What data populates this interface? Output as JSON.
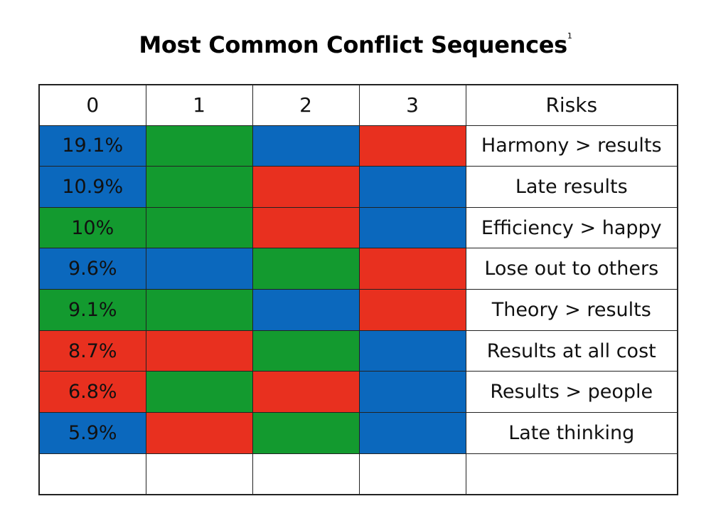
{
  "title": "Most Common Conflict Sequences",
  "title_footnote": "1",
  "colors": {
    "blue": "#0b68bd",
    "green": "#139a2f",
    "red": "#e8301f"
  },
  "chart_data": {
    "type": "table",
    "title": "Most Common Conflict Sequences",
    "columns": [
      "0",
      "1",
      "2",
      "3",
      "Risks"
    ],
    "rows": [
      {
        "percent": "19.1%",
        "value": 19.1,
        "sequence": [
          "blue",
          "green",
          "blue",
          "red"
        ],
        "risk": "Harmony > results"
      },
      {
        "percent": "10.9%",
        "value": 10.9,
        "sequence": [
          "blue",
          "green",
          "red",
          "blue"
        ],
        "risk": "Late results"
      },
      {
        "percent": "10%",
        "value": 10,
        "sequence": [
          "green",
          "green",
          "red",
          "blue"
        ],
        "risk": "Efficiency > happy"
      },
      {
        "percent": "9.6%",
        "value": 9.6,
        "sequence": [
          "blue",
          "blue",
          "green",
          "red"
        ],
        "risk": "Lose out to others"
      },
      {
        "percent": "9.1%",
        "value": 9.1,
        "sequence": [
          "green",
          "green",
          "blue",
          "red"
        ],
        "risk": "Theory > results"
      },
      {
        "percent": "8.7%",
        "value": 8.7,
        "sequence": [
          "red",
          "red",
          "green",
          "blue"
        ],
        "risk": "Results at all cost"
      },
      {
        "percent": "6.8%",
        "value": 6.8,
        "sequence": [
          "red",
          "green",
          "red",
          "blue"
        ],
        "risk": "Results > people"
      },
      {
        "percent": "5.9%",
        "value": 5.9,
        "sequence": [
          "blue",
          "red",
          "green",
          "blue"
        ],
        "risk": "Late thinking"
      }
    ],
    "empty_rows": 1
  }
}
